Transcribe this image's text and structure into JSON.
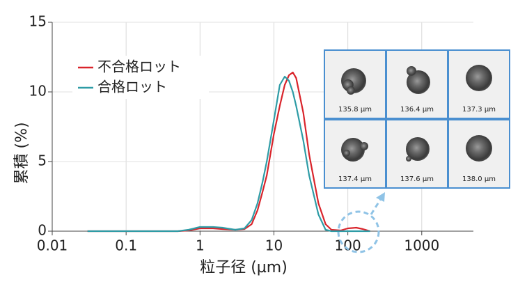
{
  "chart_data": {
    "type": "line",
    "xlabel": "粒子径 (µm)",
    "ylabel": "累積 (%)",
    "x": [
      0.03,
      0.5,
      0.7,
      1,
      1.5,
      2,
      3,
      4,
      5,
      6,
      7,
      8,
      10,
      12,
      14,
      16,
      18,
      20,
      25,
      30,
      40,
      50,
      60,
      80,
      100,
      130,
      160,
      200
    ],
    "series": [
      {
        "name": "不合格ロット",
        "color": "#d9242b",
        "values": [
          0,
          0,
          0.05,
          0.2,
          0.2,
          0.15,
          0.1,
          0.15,
          0.5,
          1.5,
          2.8,
          4,
          7,
          9,
          10.5,
          11.2,
          11.4,
          11,
          8.5,
          5.5,
          2,
          0.5,
          0.1,
          0.05,
          0.2,
          0.25,
          0.15,
          0
        ]
      },
      {
        "name": "合格ロット",
        "color": "#2e9ca6",
        "values": [
          0,
          0,
          0.1,
          0.3,
          0.3,
          0.25,
          0.1,
          0.2,
          0.8,
          2,
          3.5,
          5,
          8,
          10.5,
          11.1,
          10.8,
          10,
          9,
          6.5,
          4,
          1.2,
          0.1,
          0,
          0,
          0,
          0,
          0,
          0
        ]
      }
    ],
    "xscale": "log",
    "xlim": [
      0.01,
      5000
    ],
    "xticks": [
      0.01,
      0.1,
      1,
      10,
      100,
      1000
    ],
    "ylim": [
      0,
      15
    ],
    "yticks": [
      0,
      5,
      10,
      15
    ],
    "grid": true,
    "legend": "upper left"
  },
  "inset": {
    "labels": [
      "135.8 µm",
      "136.4 µm",
      "137.3 µm",
      "137.4 µm",
      "137.6 µm",
      "138.0 µm"
    ]
  }
}
